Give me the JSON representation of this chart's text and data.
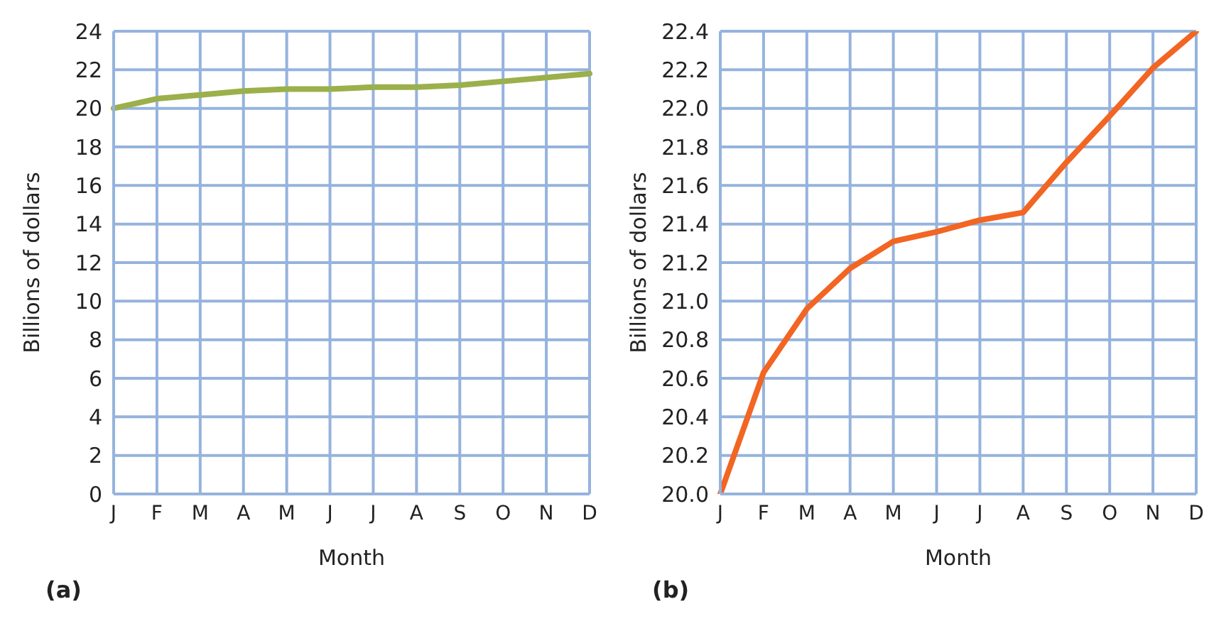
{
  "chart_data": [
    {
      "type": "line",
      "categories": [
        "J",
        "F",
        "M",
        "A",
        "M",
        "J",
        "J",
        "A",
        "S",
        "O",
        "N",
        "D"
      ],
      "xlabel": "Month",
      "ylabel": "Billions of dollars",
      "annotations": [
        "(a)"
      ],
      "series": [
        {
          "color": "#9bb04a",
          "values": [
            20.0,
            20.5,
            20.7,
            20.9,
            21.0,
            21.0,
            21.1,
            21.1,
            21.2,
            21.4,
            21.6,
            21.8
          ]
        }
      ],
      "ylim": [
        0,
        24
      ],
      "yticks": [
        0,
        2,
        4,
        6,
        8,
        10,
        12,
        14,
        16,
        18,
        20,
        22,
        24
      ],
      "grid": true,
      "legend": false,
      "marker": "none",
      "line_style": "solid"
    },
    {
      "type": "line",
      "categories": [
        "J",
        "F",
        "M",
        "A",
        "M",
        "J",
        "J",
        "A",
        "S",
        "O",
        "N",
        "D"
      ],
      "xlabel": "Month",
      "ylabel": "Billions of dollars",
      "annotations": [
        "(b)"
      ],
      "series": [
        {
          "color": "#f26522",
          "values": [
            20.0,
            20.63,
            20.96,
            21.17,
            21.31,
            21.36,
            21.42,
            21.46,
            21.72,
            21.96,
            22.21,
            22.4
          ]
        }
      ],
      "ylim": [
        20.0,
        22.4
      ],
      "yticks": [
        {
          "value": 20.0,
          "label": "20.0"
        },
        {
          "value": 20.2,
          "label": "20.2"
        },
        {
          "value": 20.4,
          "label": "20.4"
        },
        {
          "value": 20.6,
          "label": "20.6"
        },
        {
          "value": 20.8,
          "label": "20.8"
        },
        {
          "value": 21.0,
          "label": "21.0"
        },
        {
          "value": 21.2,
          "label": "21.2"
        },
        {
          "value": 21.4,
          "label": "21.4"
        },
        {
          "value": 21.6,
          "label": "21.6"
        },
        {
          "value": 21.8,
          "label": "21.8"
        },
        {
          "value": 22.0,
          "label": "22.0"
        },
        {
          "value": 22.2,
          "label": "22.2"
        },
        {
          "value": 22.4,
          "label": "22.4"
        }
      ],
      "grid": true,
      "legend": false,
      "marker": "none",
      "line_style": "solid"
    }
  ]
}
